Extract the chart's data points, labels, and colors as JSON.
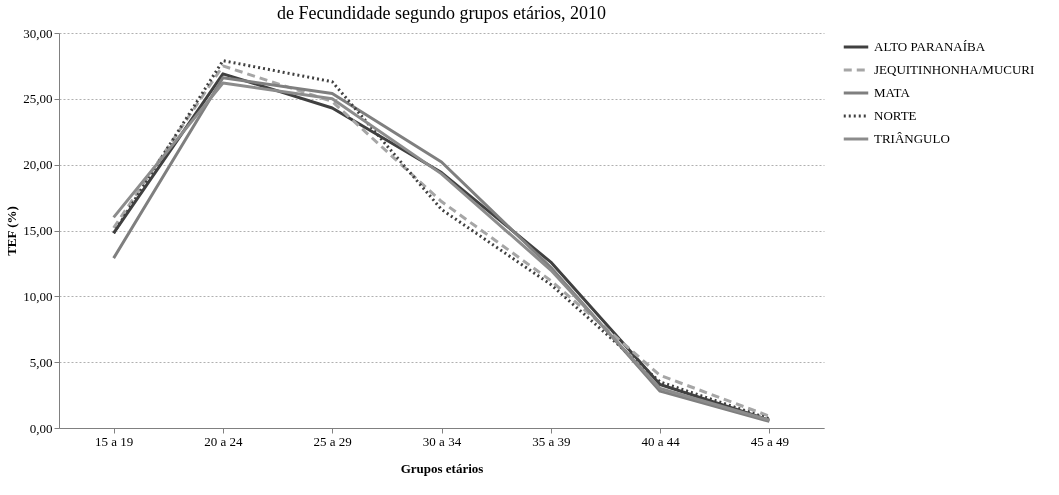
{
  "chart_data": {
    "type": "line",
    "title": "de Fecundidade segundo grupos etários, 2010",
    "xlabel": "Grupos etários",
    "ylabel": "TEF (%)",
    "categories": [
      "15 a 19",
      "20 a 24",
      "25 a 29",
      "30 a 34",
      "35 a 39",
      "40 a 44",
      "45 a 49"
    ],
    "series": [
      {
        "name": "ALTO PARANAÍBA",
        "color": "#404040",
        "line_style": "solid",
        "values": [
          14.8,
          26.9,
          24.3,
          19.4,
          12.6,
          3.3,
          0.6
        ]
      },
      {
        "name": "JEQUITINHONHA/MUCURI",
        "color": "#a6a6a6",
        "line_style": "dashed",
        "values": [
          15.2,
          27.5,
          24.8,
          17.2,
          11.2,
          4.0,
          0.9
        ]
      },
      {
        "name": "MATA",
        "color": "#7f7f7f",
        "line_style": "solid",
        "values": [
          12.9,
          26.6,
          25.4,
          20.2,
          12.2,
          2.8,
          0.5
        ]
      },
      {
        "name": "NORTE",
        "color": "#404040",
        "line_style": "dotted",
        "values": [
          14.8,
          27.9,
          26.3,
          16.6,
          10.9,
          3.5,
          0.7
        ]
      },
      {
        "name": "TRIÂNGULO",
        "color": "#8c8c8c",
        "line_style": "solid",
        "values": [
          16.0,
          26.2,
          25.0,
          19.3,
          12.0,
          3.0,
          0.6
        ]
      }
    ],
    "ylim": [
      0,
      30
    ],
    "yticks": [
      {
        "value": 0,
        "label": "0,00"
      },
      {
        "value": 5,
        "label": "5,00"
      },
      {
        "value": 10,
        "label": "10,00"
      },
      {
        "value": 15,
        "label": "15,00"
      },
      {
        "value": 20,
        "label": "20,00"
      },
      {
        "value": 25,
        "label": "25,00"
      },
      {
        "value": 30,
        "label": "30,00"
      }
    ],
    "grid": "y",
    "legend": "right",
    "marker": "none"
  }
}
